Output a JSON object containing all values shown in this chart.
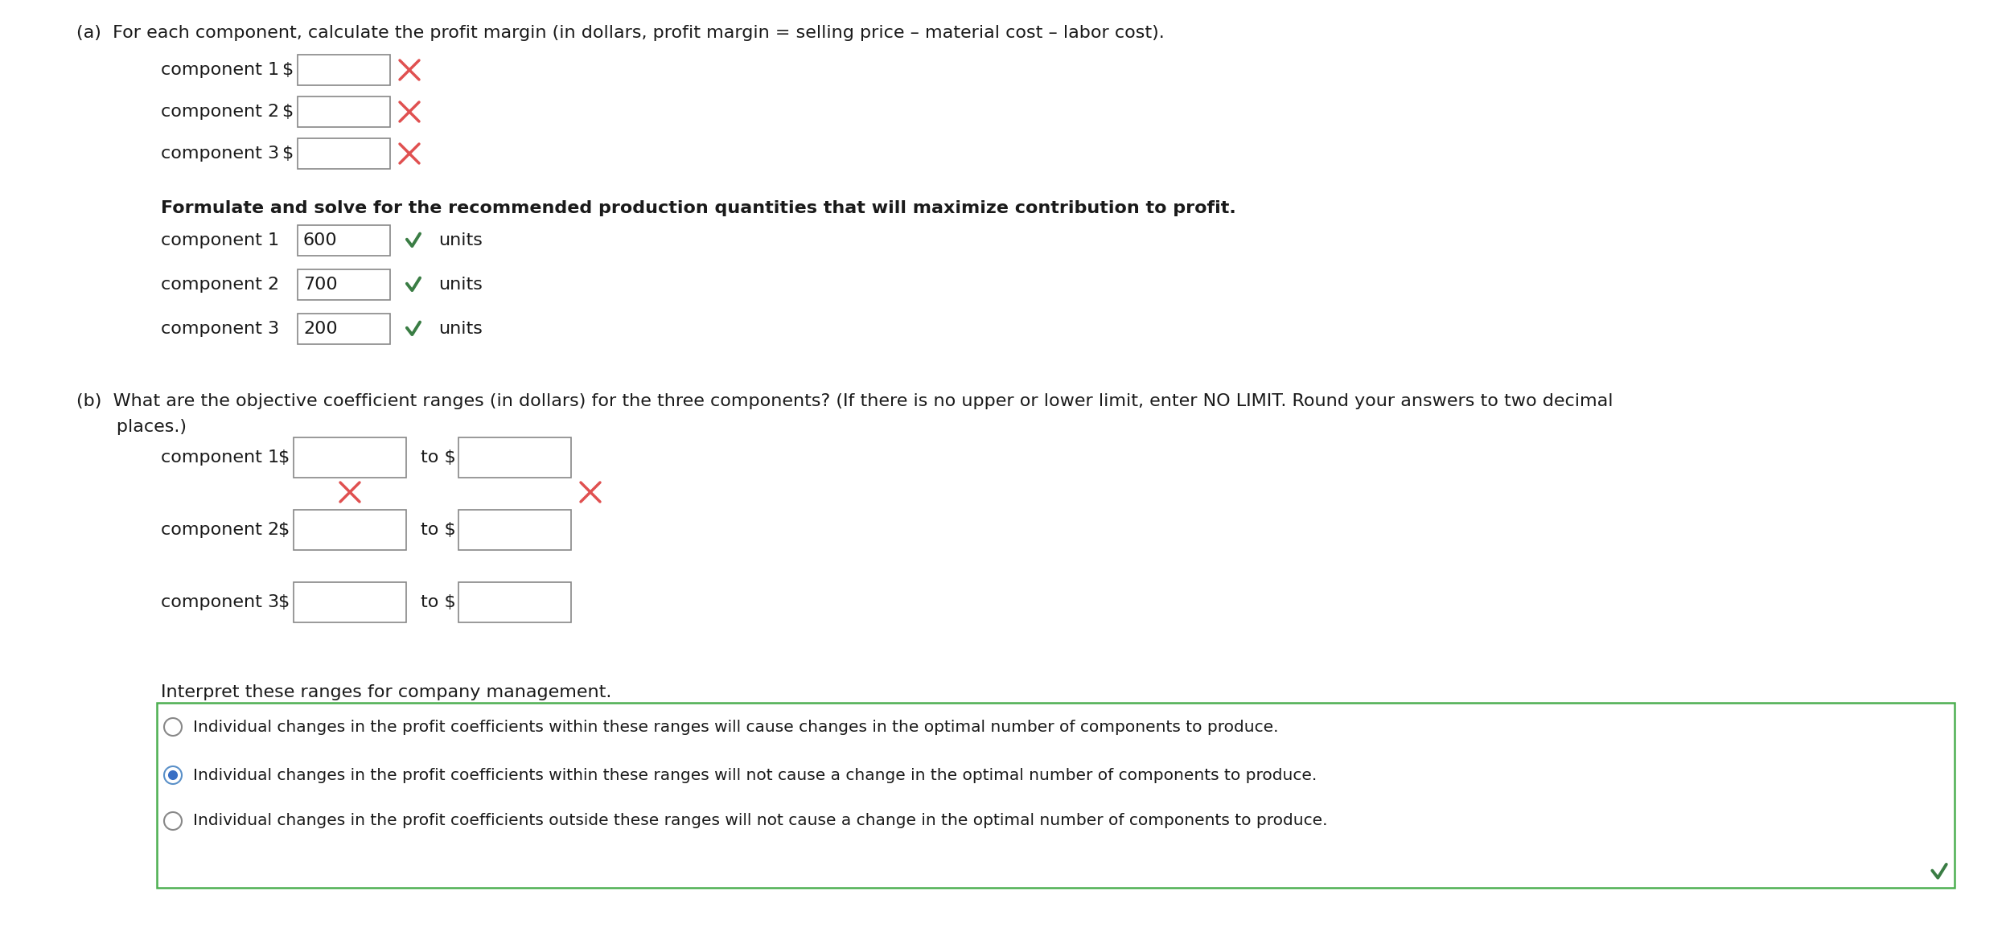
{
  "bg_color": "#ffffff",
  "part_a_label": "(a)  For each component, calculate the profit margin (in dollars, profit margin = selling price – material cost – labor cost).",
  "part_a_components": [
    "component 1",
    "component 2",
    "component 3"
  ],
  "dollar_sign": "$",
  "formulate_text": "Formulate and solve for the recommended production quantities that will maximize contribution to profit.",
  "formulate_components": [
    "component 1",
    "component 2",
    "component 3"
  ],
  "formulate_values": [
    "600",
    "700",
    "200"
  ],
  "formulate_unit": "units",
  "part_b_line1": "(b)  What are the objective coefficient ranges (in dollars) for the three components? (If there is no upper or lower limit, enter NO LIMIT. Round your answers to two decimal",
  "part_b_line2": "       places.)",
  "part_b_components": [
    "component 1",
    "component 2",
    "component 3"
  ],
  "to_dollar": "to $",
  "interpret_text": "Interpret these ranges for company management.",
  "radio_options": [
    "Individual changes in the profit coefficients within these ranges will cause changes in the optimal number of components to produce.",
    "Individual changes in the profit coefficients within these ranges will not cause a change in the optimal number of components to produce.",
    "Individual changes in the profit coefficients outside these ranges will not cause a change in the optimal number of components to produce."
  ],
  "radio_selected": 1,
  "green_color": "#3a7d44",
  "x_color": "#e05050",
  "box_border_color": "#888888",
  "radio_box_border_color": "#4caf50",
  "text_color": "#1a1a1a",
  "font_size": 16,
  "label_font_size": 16,
  "radio_font_size": 14.5,
  "bold_text": "Formulate and solve for the recommended production quantities that will maximize contribution to profit."
}
